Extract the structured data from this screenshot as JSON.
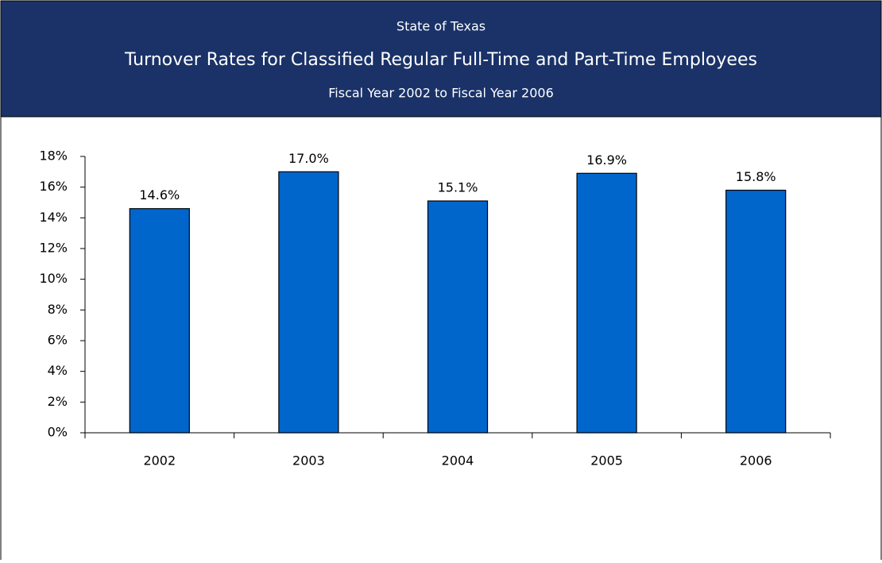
{
  "chart_data": {
    "type": "bar",
    "supertitle": "State of Texas",
    "title": "Turnover Rates for Classified Regular Full-Time and Part-Time Employees",
    "subtitle": "Fiscal Year 2002 to Fiscal Year 2006",
    "categories": [
      "2002",
      "2003",
      "2004",
      "2005",
      "2006"
    ],
    "values": [
      14.6,
      17.0,
      15.1,
      16.9,
      15.8
    ],
    "value_labels": [
      "14.6%",
      "17.0%",
      "15.1%",
      "16.9%",
      "15.8%"
    ],
    "color": "#0066cc",
    "ylim": [
      0,
      18
    ],
    "yticks": [
      {
        "value": 0,
        "label": "0%"
      },
      {
        "value": 2,
        "label": "2%"
      },
      {
        "value": 4,
        "label": "4%"
      },
      {
        "value": 6,
        "label": "6%"
      },
      {
        "value": 8,
        "label": "8%"
      },
      {
        "value": 10,
        "label": "10%"
      },
      {
        "value": 12,
        "label": "12%"
      },
      {
        "value": 14,
        "label": "14%"
      },
      {
        "value": 16,
        "label": "16%"
      },
      {
        "value": 18,
        "label": "18%"
      }
    ],
    "grid": false
  }
}
